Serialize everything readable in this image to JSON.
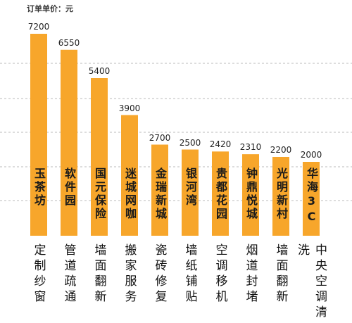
{
  "chart_data": {
    "type": "bar",
    "title": "订单单价：元",
    "categories": [
      "定制纱窗",
      "管道疏通",
      "墙面翻新",
      "搬家服务",
      "瓷砖修复",
      "墙纸铺贴",
      "空调移机",
      "烟道封堵",
      "墙面翻新",
      "中央空调清洗"
    ],
    "bar_labels": [
      "玉茶坊",
      "软件园",
      "国元保险",
      "迷城网咖",
      "金瑞新城",
      "银河湾",
      "贵都花园",
      "钟鼎悦城",
      "光明新村",
      "华海3C"
    ],
    "values": [
      7200,
      6550,
      5400,
      3900,
      2700,
      2500,
      2420,
      2310,
      2200,
      2000
    ],
    "color": "#f7a62b",
    "ylim": [
      -1000,
      7500
    ]
  }
}
